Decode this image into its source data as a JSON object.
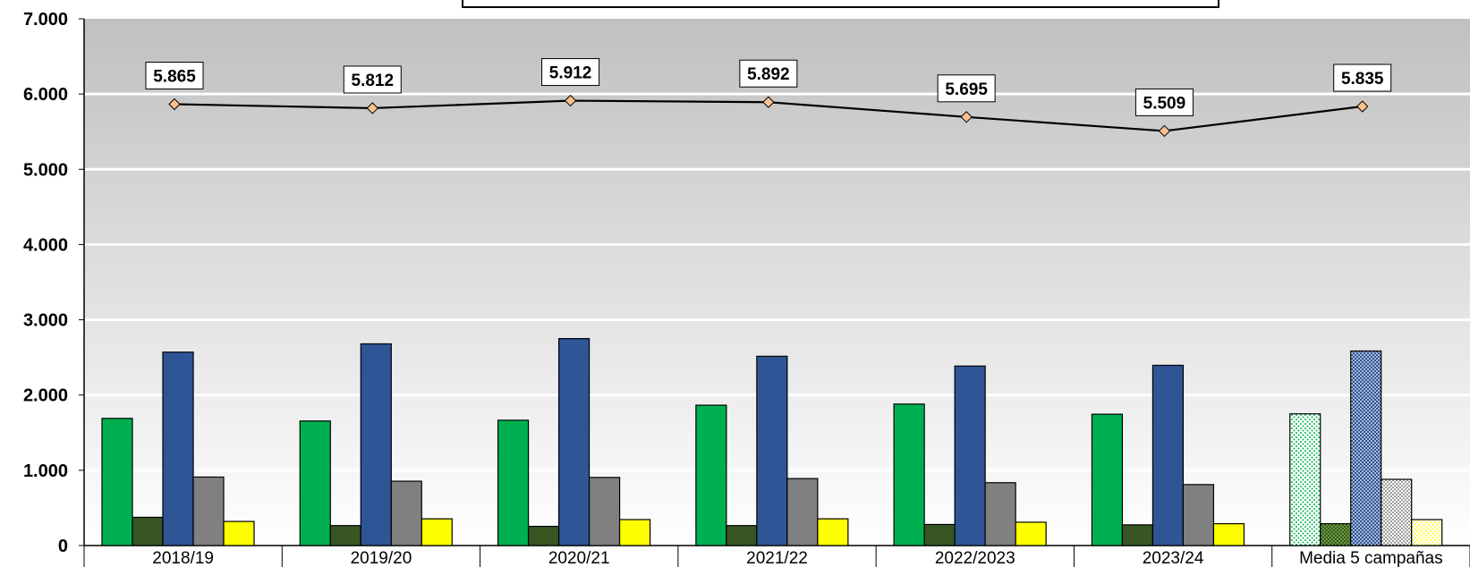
{
  "chart_data": {
    "type": "bar",
    "title": "",
    "xlabel": "",
    "ylabel": "",
    "ylim": [
      0,
      7000
    ],
    "yticks": [
      "0",
      "1.000",
      "2.000",
      "3.000",
      "4.000",
      "5.000",
      "6.000",
      "7.000"
    ],
    "ytick_values": [
      0,
      1000,
      2000,
      3000,
      4000,
      5000,
      6000,
      7000
    ],
    "grid": true,
    "categories": [
      "2018/19",
      "2019/20",
      "2020/21",
      "2021/22",
      "2022/2023",
      "2023/24",
      "Media 5 campañas"
    ],
    "series": [
      {
        "type": "bar",
        "color": "#00b050",
        "values": [
          1690,
          1655,
          1665,
          1865,
          1880,
          1745,
          1750
        ]
      },
      {
        "type": "bar",
        "color": "#375623",
        "values": [
          375,
          265,
          255,
          265,
          280,
          275,
          290
        ]
      },
      {
        "type": "bar",
        "color": "#2f5597",
        "values": [
          2570,
          2680,
          2750,
          2515,
          2385,
          2395,
          2585
        ]
      },
      {
        "type": "bar",
        "color": "#808080",
        "values": [
          910,
          855,
          905,
          890,
          835,
          810,
          880
        ]
      },
      {
        "type": "bar",
        "color": "#ffff00",
        "values": [
          320,
          355,
          345,
          355,
          310,
          290,
          345
        ]
      },
      {
        "type": "line",
        "color": "#000000",
        "marker_color": "#fac090",
        "values": [
          5865,
          5812,
          5912,
          5892,
          5695,
          5509,
          5835
        ],
        "labels": [
          "5.865",
          "5.812",
          "5.912",
          "5.892",
          "5.695",
          "5.509",
          "5.835"
        ]
      }
    ],
    "last_category_hatched": true
  }
}
